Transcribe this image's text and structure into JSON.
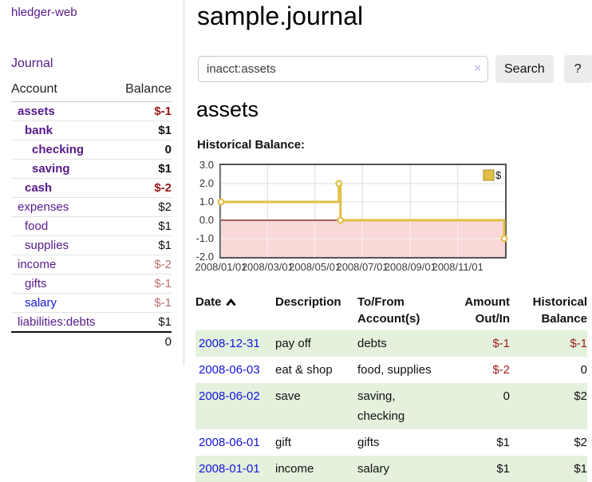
{
  "colors": {
    "accent_purple": "#551a8b",
    "link_blue": "#1414dd",
    "negative_strong": "#9c1616",
    "negative_soft": "#bd6e6e",
    "row_stripe_green": "#e4f1dd",
    "chart_gold": "#e2bf45"
  },
  "sidebar": {
    "brand": "hledger-web",
    "nav_journal": "Journal",
    "accounts_table": {
      "headers": [
        "Account",
        "Balance"
      ],
      "rows": [
        {
          "name": "assets",
          "depth": 1,
          "bold": true,
          "balance": "$-1",
          "style": "neg-strong"
        },
        {
          "name": "bank",
          "depth": 2,
          "bold": true,
          "balance": "$1",
          "style": "pos-strong"
        },
        {
          "name": "checking",
          "depth": 3,
          "bold": true,
          "balance": "0",
          "style": "pos-strong"
        },
        {
          "name": "saving",
          "depth": 3,
          "bold": true,
          "balance": "$1",
          "style": "pos-strong"
        },
        {
          "name": "cash",
          "depth": 2,
          "bold": true,
          "balance": "$-2",
          "style": "neg-strong"
        },
        {
          "name": "expenses",
          "depth": 1,
          "bold": false,
          "balance": "$2",
          "style": "pos"
        },
        {
          "name": "food",
          "depth": 2,
          "bold": false,
          "balance": "$1",
          "style": "pos"
        },
        {
          "name": "supplies",
          "depth": 2,
          "bold": false,
          "balance": "$1",
          "style": "pos"
        },
        {
          "name": "income",
          "depth": 1,
          "bold": false,
          "balance": "$-2",
          "style": "neg"
        },
        {
          "name": "gifts",
          "depth": 2,
          "bold": false,
          "balance": "$-1",
          "style": "neg"
        },
        {
          "name": "salary",
          "depth": 2,
          "bold": false,
          "unvisited": true,
          "balance": "$-1",
          "style": "neg"
        },
        {
          "name": "liabilities:debts",
          "depth": 1,
          "bold": false,
          "balance": "$1",
          "style": "pos"
        }
      ],
      "total": "0"
    }
  },
  "main": {
    "title": "sample.journal",
    "search": {
      "value": "inacct:assets",
      "clear_icon": "×",
      "button_label": "Search",
      "help_label": "?"
    },
    "account_heading": "assets",
    "chart_label": "Historical Balance:",
    "register": {
      "headers": [
        {
          "lines": [
            "Date"
          ],
          "sort": "asc",
          "align": "left"
        },
        {
          "lines": [
            "Description"
          ],
          "align": "left"
        },
        {
          "lines": [
            "To/From",
            "Account(s)"
          ],
          "align": "left"
        },
        {
          "lines": [
            "Amount",
            "Out/In"
          ],
          "align": "right"
        },
        {
          "lines": [
            "Historical",
            "Balance"
          ],
          "align": "right"
        }
      ],
      "rows": [
        {
          "date": "2008-12-31",
          "description": "pay off",
          "accounts": [
            "debts"
          ],
          "amount": "$-1",
          "amount_neg": true,
          "balance": "$-1",
          "balance_neg": true
        },
        {
          "date": "2008-06-03",
          "description": "eat & shop",
          "accounts": [
            "food, supplies"
          ],
          "amount": "$-2",
          "amount_neg": true,
          "balance": "0",
          "balance_neg": false
        },
        {
          "date": "2008-06-02",
          "description": "save",
          "accounts": [
            "saving,",
            "checking"
          ],
          "amount": "0",
          "amount_neg": false,
          "balance": "$2",
          "balance_neg": false
        },
        {
          "date": "2008-06-01",
          "description": "gift",
          "accounts": [
            "gifts"
          ],
          "amount": "$1",
          "amount_neg": false,
          "balance": "$2",
          "balance_neg": false
        },
        {
          "date": "2008-01-01",
          "description": "income",
          "accounts": [
            "salary"
          ],
          "amount": "$1",
          "amount_neg": false,
          "balance": "$1",
          "balance_neg": false
        }
      ]
    }
  },
  "chart_data": {
    "type": "line",
    "title": "Historical Balance",
    "step": true,
    "series": [
      {
        "name": "$",
        "color": "#e2bf45",
        "points": [
          [
            "2008-01-01",
            1
          ],
          [
            "2008-06-01",
            2
          ],
          [
            "2008-06-03",
            0
          ],
          [
            "2008-12-31",
            -1
          ]
        ]
      }
    ],
    "x_ticks": [
      "2008/01/01",
      "2008/03/01",
      "2008/05/01",
      "2008/07/01",
      "2008/09/01",
      "2008/11/01"
    ],
    "y_ticks": [
      3.0,
      2.0,
      1.0,
      0.0,
      -1.0,
      -2.0
    ],
    "xlim": [
      "2008-01-01",
      "2009-01-01"
    ],
    "ylim": [
      -2,
      3
    ],
    "grid": true,
    "legend": {
      "label": "$",
      "position": "top-right"
    },
    "negative_fill": "#f9d8d8",
    "zero_line": "#7b0a0a"
  }
}
